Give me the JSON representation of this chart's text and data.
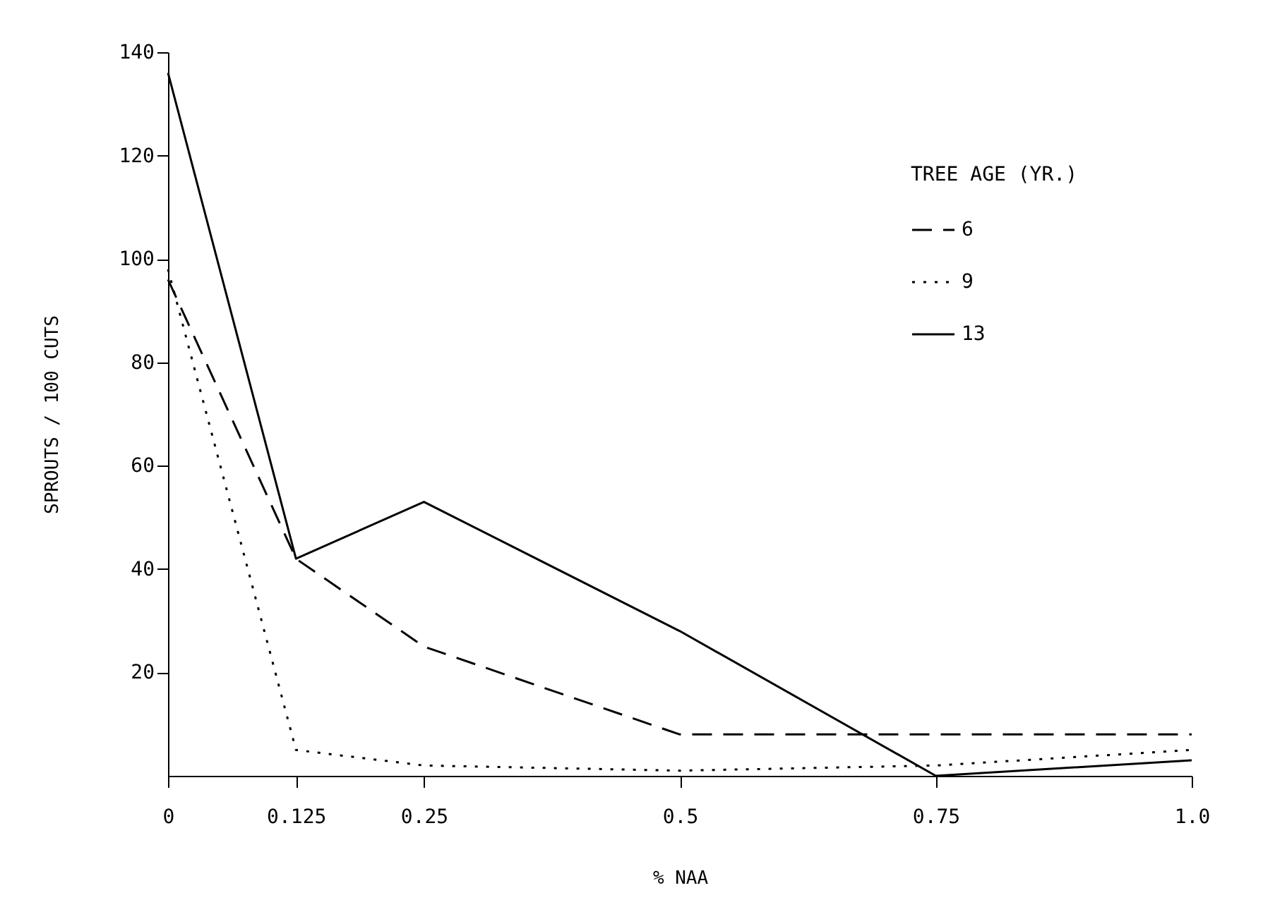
{
  "chart_data": {
    "type": "line",
    "xlabel": "% NAA",
    "ylabel": "SPROUTS / 100 CUTS",
    "legend_title": "TREE AGE (YR.)",
    "x": [
      0,
      0.125,
      0.25,
      0.5,
      0.75,
      1
    ],
    "series": [
      {
        "name": "6",
        "color": "#000000",
        "line_style": "dashed",
        "values": [
          96,
          42,
          25,
          8,
          8,
          8
        ]
      },
      {
        "name": "9",
        "color": "#000000",
        "line_style": "dotted",
        "values": [
          98,
          5,
          2,
          1,
          2,
          5
        ]
      },
      {
        "name": "13",
        "color": "#000000",
        "line_style": "solid",
        "values": [
          136,
          42,
          53,
          28,
          0,
          3
        ]
      }
    ],
    "xlim": [
      0,
      1
    ],
    "xticks": [
      0,
      0.125,
      0.25,
      0.5,
      0.75,
      {
        "value": 1,
        "label": "1.0"
      }
    ],
    "ylim": [
      0,
      140
    ],
    "yticks": [
      20,
      40,
      60,
      80,
      100,
      120,
      140
    ],
    "grid": false,
    "legend": "top right",
    "marker": "none"
  }
}
